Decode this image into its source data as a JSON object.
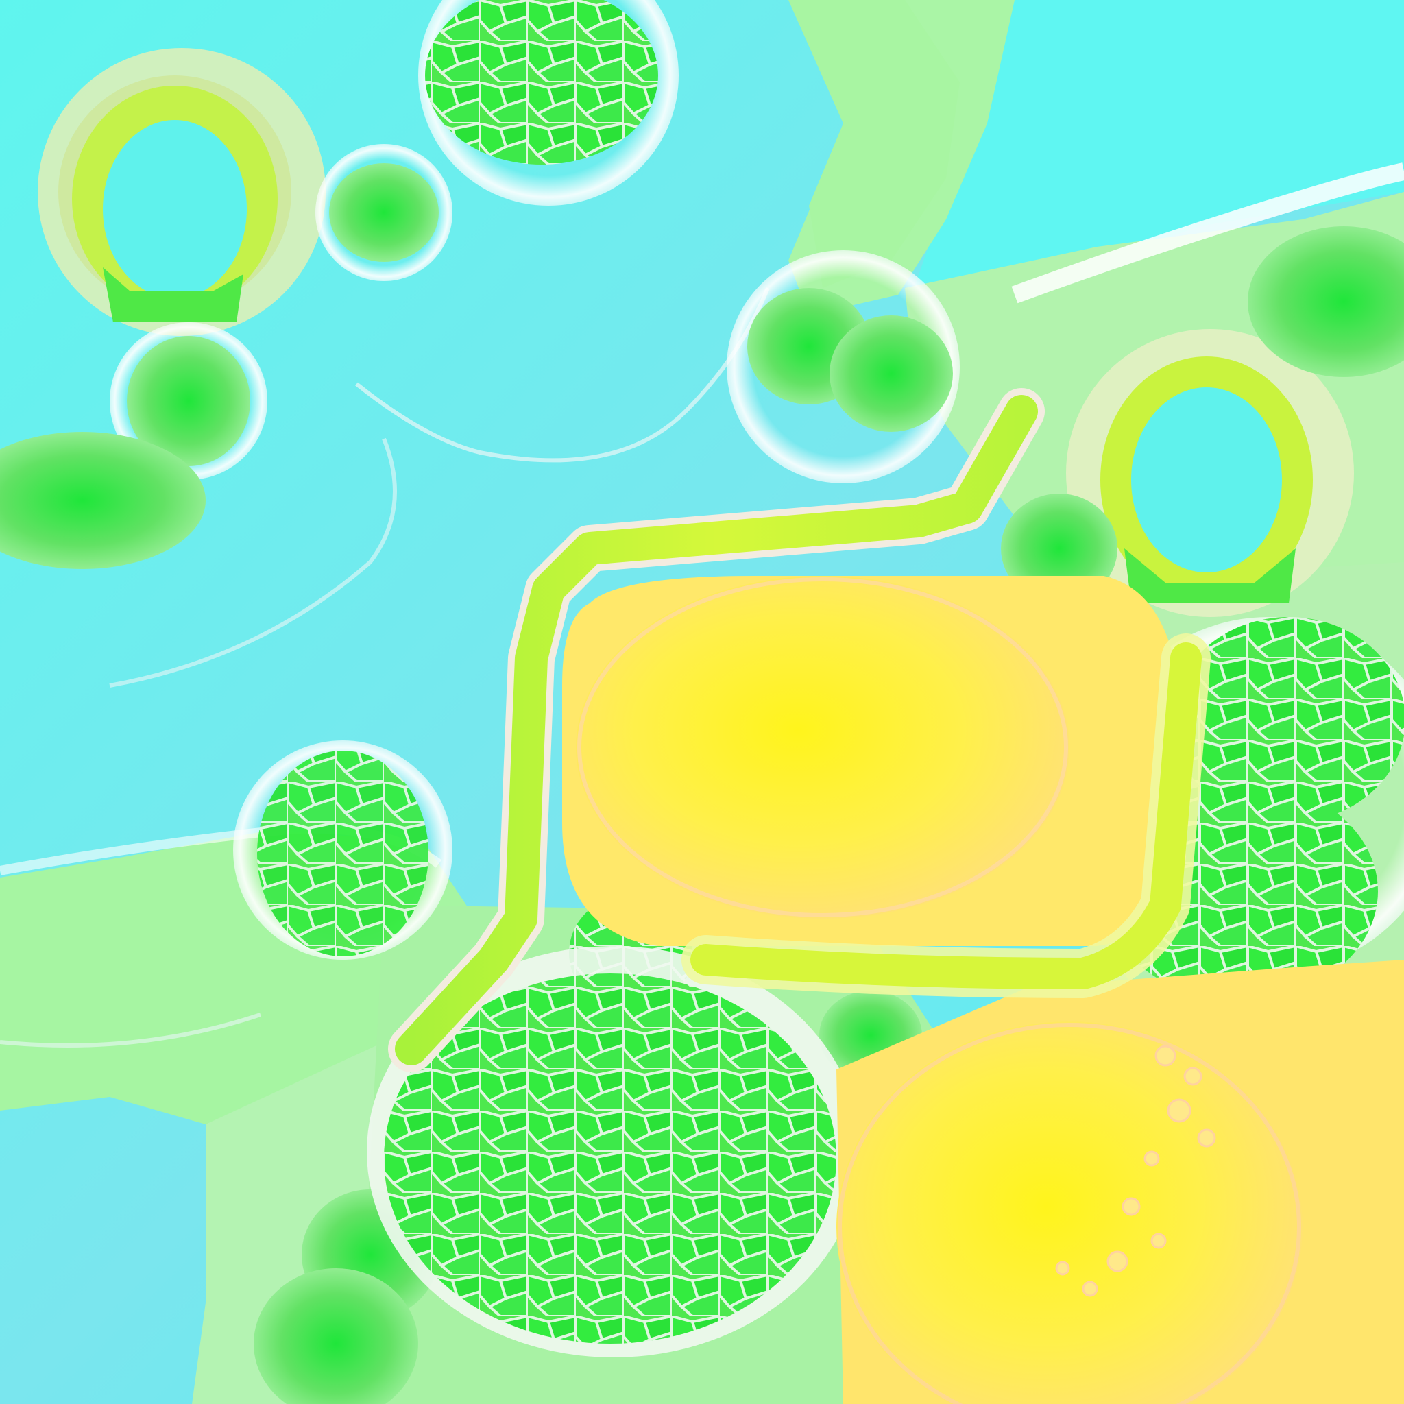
{
  "scene": {
    "description_visible_text": "",
    "palette": {
      "water": "#5ff2ec",
      "water_deep": "#4fe6ee",
      "shore_light": "#a9f5a9",
      "sand": "#e8f0c0",
      "foam": "#f4fbfb",
      "grass": "#5fe05f",
      "grass_bright": "#33ee44",
      "lime": "#c9f53a",
      "lime_inner": "#e6f83a",
      "yellow": "#ffe94a",
      "yellow_core": "#fff23a",
      "yellow_edge": "#ffe27a"
    },
    "features": [
      {
        "kind": "ring",
        "name": "ring-top-left"
      },
      {
        "kind": "ring",
        "name": "ring-right"
      },
      {
        "kind": "path",
        "name": "lime-path"
      },
      {
        "kind": "field",
        "name": "yellow-field-center"
      },
      {
        "kind": "field",
        "name": "yellow-field-bottom-right"
      },
      {
        "kind": "cluster",
        "name": "green-cell-cluster"
      }
    ]
  }
}
